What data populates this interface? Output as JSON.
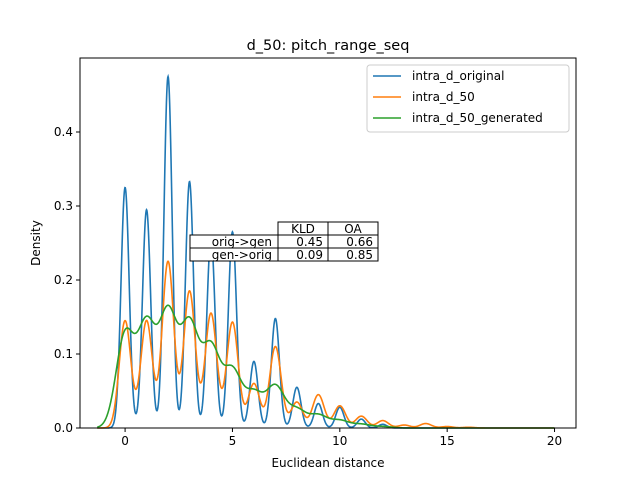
{
  "chart_data": {
    "type": "line",
    "title": "d_50: pitch_range_seq",
    "xlabel": "Euclidean distance",
    "ylabel": "Density",
    "xlim": [
      -2.1,
      21.0
    ],
    "ylim": [
      0,
      0.5
    ],
    "xticks": [
      0,
      5,
      10,
      15,
      20
    ],
    "yticks": [
      0.0,
      0.1,
      0.2,
      0.3,
      0.4
    ],
    "xtick_labels": [
      "0",
      "5",
      "10",
      "15",
      "20"
    ],
    "ytick_labels": [
      "0.0",
      "0.1",
      "0.2",
      "0.3",
      "0.4"
    ],
    "grid": false,
    "legend_position": "top-right",
    "series": [
      {
        "name": "intra_d_original",
        "color": "#1f77b4",
        "peaks": [
          [
            0,
            0.325
          ],
          [
            1,
            0.295
          ],
          [
            2,
            0.475
          ],
          [
            3,
            0.333
          ],
          [
            4,
            0.258
          ],
          [
            5,
            0.265
          ],
          [
            6,
            0.09
          ],
          [
            7,
            0.148
          ],
          [
            8,
            0.055
          ],
          [
            9,
            0.033
          ],
          [
            10,
            0.028
          ],
          [
            11,
            0.012
          ],
          [
            12,
            0.005
          ]
        ]
      },
      {
        "name": "intra_d_50",
        "color": "#ff7f0e",
        "peaks": [
          [
            0,
            0.145
          ],
          [
            1,
            0.145
          ],
          [
            2,
            0.225
          ],
          [
            3,
            0.185
          ],
          [
            4,
            0.155
          ],
          [
            5,
            0.143
          ],
          [
            6,
            0.06
          ],
          [
            7,
            0.11
          ],
          [
            8,
            0.035
          ],
          [
            9,
            0.045
          ],
          [
            10,
            0.03
          ],
          [
            11,
            0.016
          ],
          [
            12,
            0.01
          ],
          [
            13,
            0.004
          ],
          [
            14,
            0.006
          ],
          [
            15,
            0.002
          ],
          [
            16,
            0.001
          ]
        ]
      },
      {
        "name": "intra_d_50_generated",
        "color": "#2ca02c",
        "peaks": [
          [
            0,
            0.125
          ],
          [
            1,
            0.135
          ],
          [
            2,
            0.15
          ],
          [
            3,
            0.135
          ],
          [
            4,
            0.105
          ],
          [
            5,
            0.075
          ],
          [
            6,
            0.045
          ],
          [
            7,
            0.055
          ],
          [
            8,
            0.024
          ],
          [
            9,
            0.017
          ],
          [
            10,
            0.01
          ],
          [
            11,
            0.005
          ],
          [
            12,
            0.002
          ]
        ]
      }
    ],
    "table": {
      "col_labels": [
        "KLD",
        "OA"
      ],
      "rows": [
        {
          "label": "orig->gen",
          "values": [
            "0.45",
            "0.66"
          ]
        },
        {
          "label": "gen->orig",
          "values": [
            "0.09",
            "0.85"
          ]
        }
      ]
    }
  }
}
